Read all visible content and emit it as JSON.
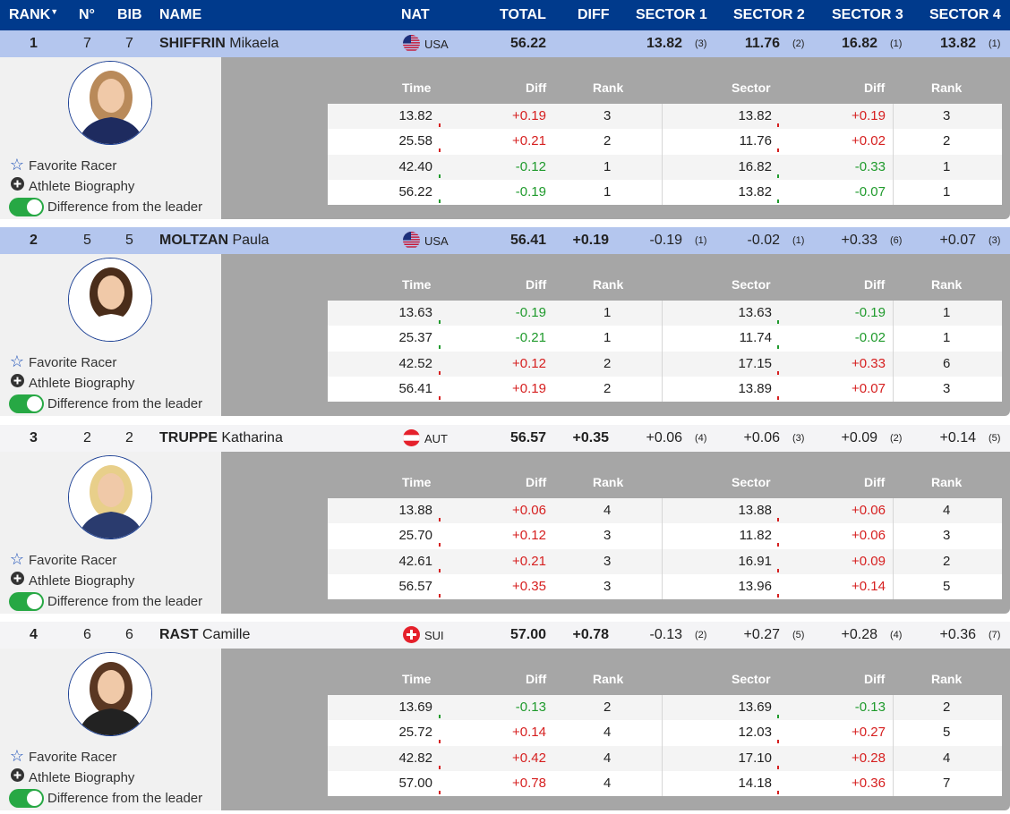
{
  "header": {
    "rank": "RANK",
    "no": "N°",
    "bib": "BIB",
    "name": "NAME",
    "nat": "NAT",
    "total": "TOTAL",
    "diff": "DIFF",
    "sector1": "SECTOR 1",
    "sector2": "SECTOR 2",
    "sector3": "SECTOR 3",
    "sector4": "SECTOR 4"
  },
  "split_headers": {
    "time": "Time",
    "diff": "Diff",
    "rank": "Rank",
    "sector": "Sector",
    "sdiff": "Diff",
    "srank": "Rank"
  },
  "links": {
    "favorite": "Favorite Racer",
    "biography": "Athlete Biography",
    "difference": "Difference from the leader"
  },
  "colors": {
    "header": "#003a8c",
    "highlight_row": "#b4c6ee",
    "positive": "#d61f1f",
    "negative": "#1f9a2c",
    "toggle": "#27a844"
  },
  "racers": [
    {
      "rank": "1",
      "no": "7",
      "bib": "7",
      "surname": "SHIFFRIN",
      "firstname": "Mikaela",
      "nat": "USA",
      "flag": "usa-flag",
      "total": "56.22",
      "diff": "",
      "sectors": [
        {
          "value": "13.82",
          "rank": "(3)"
        },
        {
          "value": "11.76",
          "rank": "(2)"
        },
        {
          "value": "16.82",
          "rank": "(1)"
        },
        {
          "value": "13.82",
          "rank": "(1)"
        }
      ],
      "splits": [
        {
          "time": "13.82",
          "diff": "+0.19",
          "rank": "3",
          "sector": "13.82",
          "sdiff": "+0.19",
          "srank": "3"
        },
        {
          "time": "25.58",
          "diff": "+0.21",
          "rank": "2",
          "sector": "11.76",
          "sdiff": "+0.02",
          "srank": "2"
        },
        {
          "time": "42.40",
          "diff": "-0.12",
          "rank": "1",
          "sector": "16.82",
          "sdiff": "-0.33",
          "srank": "1"
        },
        {
          "time": "56.22",
          "diff": "-0.19",
          "rank": "1",
          "sector": "13.82",
          "sdiff": "-0.07",
          "srank": "1"
        }
      ]
    },
    {
      "rank": "2",
      "no": "5",
      "bib": "5",
      "surname": "MOLTZAN",
      "firstname": "Paula",
      "nat": "USA",
      "flag": "usa-flag",
      "total": "56.41",
      "diff": "+0.19",
      "sectors": [
        {
          "value": "-0.19",
          "rank": "(1)"
        },
        {
          "value": "-0.02",
          "rank": "(1)"
        },
        {
          "value": "+0.33",
          "rank": "(6)"
        },
        {
          "value": "+0.07",
          "rank": "(3)"
        }
      ],
      "splits": [
        {
          "time": "13.63",
          "diff": "-0.19",
          "rank": "1",
          "sector": "13.63",
          "sdiff": "-0.19",
          "srank": "1"
        },
        {
          "time": "25.37",
          "diff": "-0.21",
          "rank": "1",
          "sector": "11.74",
          "sdiff": "-0.02",
          "srank": "1"
        },
        {
          "time": "42.52",
          "diff": "+0.12",
          "rank": "2",
          "sector": "17.15",
          "sdiff": "+0.33",
          "srank": "6"
        },
        {
          "time": "56.41",
          "diff": "+0.19",
          "rank": "2",
          "sector": "13.89",
          "sdiff": "+0.07",
          "srank": "3"
        }
      ]
    },
    {
      "rank": "3",
      "no": "2",
      "bib": "2",
      "surname": "TRUPPE",
      "firstname": "Katharina",
      "nat": "AUT",
      "flag": "aut-flag",
      "total": "56.57",
      "diff": "+0.35",
      "sectors": [
        {
          "value": "+0.06",
          "rank": "(4)"
        },
        {
          "value": "+0.06",
          "rank": "(3)"
        },
        {
          "value": "+0.09",
          "rank": "(2)"
        },
        {
          "value": "+0.14",
          "rank": "(5)"
        }
      ],
      "splits": [
        {
          "time": "13.88",
          "diff": "+0.06",
          "rank": "4",
          "sector": "13.88",
          "sdiff": "+0.06",
          "srank": "4"
        },
        {
          "time": "25.70",
          "diff": "+0.12",
          "rank": "3",
          "sector": "11.82",
          "sdiff": "+0.06",
          "srank": "3"
        },
        {
          "time": "42.61",
          "diff": "+0.21",
          "rank": "3",
          "sector": "16.91",
          "sdiff": "+0.09",
          "srank": "2"
        },
        {
          "time": "56.57",
          "diff": "+0.35",
          "rank": "3",
          "sector": "13.96",
          "sdiff": "+0.14",
          "srank": "5"
        }
      ]
    },
    {
      "rank": "4",
      "no": "6",
      "bib": "6",
      "surname": "RAST",
      "firstname": "Camille",
      "nat": "SUI",
      "flag": "sui-flag",
      "total": "57.00",
      "diff": "+0.78",
      "sectors": [
        {
          "value": "-0.13",
          "rank": "(2)"
        },
        {
          "value": "+0.27",
          "rank": "(5)"
        },
        {
          "value": "+0.28",
          "rank": "(4)"
        },
        {
          "value": "+0.36",
          "rank": "(7)"
        }
      ],
      "splits": [
        {
          "time": "13.69",
          "diff": "-0.13",
          "rank": "2",
          "sector": "13.69",
          "sdiff": "-0.13",
          "srank": "2"
        },
        {
          "time": "25.72",
          "diff": "+0.14",
          "rank": "4",
          "sector": "12.03",
          "sdiff": "+0.27",
          "srank": "5"
        },
        {
          "time": "42.82",
          "diff": "+0.42",
          "rank": "4",
          "sector": "17.10",
          "sdiff": "+0.28",
          "srank": "4"
        },
        {
          "time": "57.00",
          "diff": "+0.78",
          "rank": "4",
          "sector": "14.18",
          "sdiff": "+0.36",
          "srank": "7"
        }
      ]
    }
  ]
}
